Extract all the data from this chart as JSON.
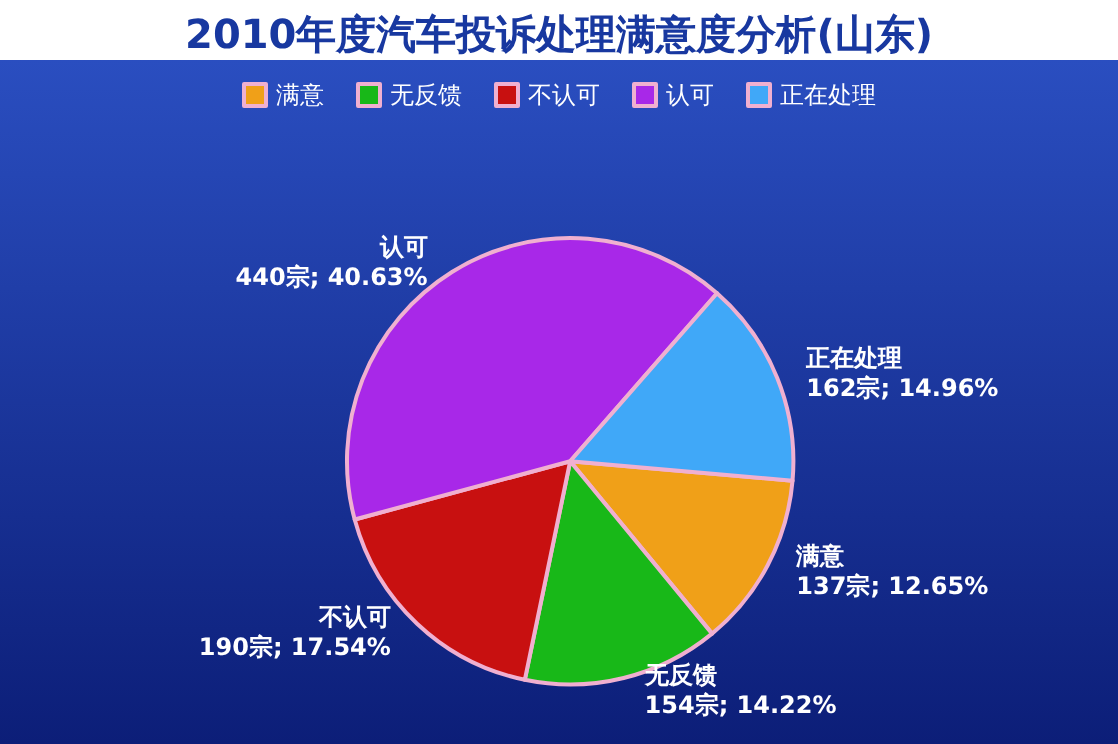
{
  "chart_data": {
    "type": "pie",
    "title": "2010年度汽车投诉处理满意度分析(山东)",
    "categories": [
      "满意",
      "无反馈",
      "不认可",
      "认可",
      "正在处理"
    ],
    "values": [
      137,
      154,
      190,
      440,
      162
    ],
    "value_labels": [
      "137宗; 12.65%",
      "154宗; 14.22%",
      "190宗; 17.54%",
      "440宗; 40.63%",
      "162宗; 14.96%"
    ],
    "colors": [
      "#f0a018",
      "#18b818",
      "#c81010",
      "#a828e8",
      "#40a8f8"
    ],
    "legend": "top"
  }
}
